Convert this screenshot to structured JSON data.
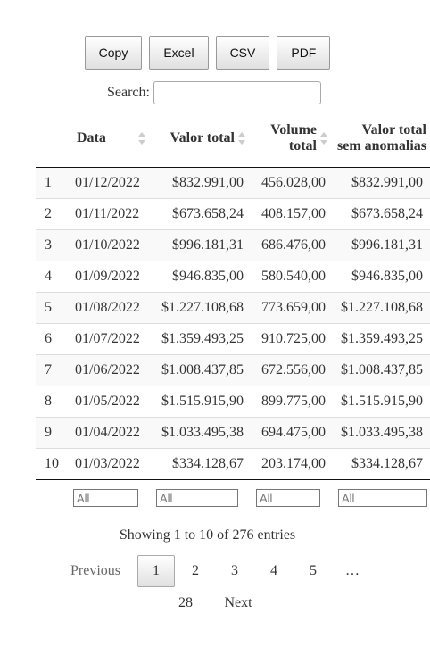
{
  "buttons": {
    "copy": "Copy",
    "excel": "Excel",
    "csv": "CSV",
    "pdf": "PDF"
  },
  "search": {
    "label": "Search:",
    "value": ""
  },
  "table": {
    "headers": {
      "data": "Data",
      "valor_total": "Valor total",
      "volume_total": "Volume total",
      "valor_sem": "Valor total sem anomalias"
    },
    "rows": [
      {
        "idx": "1",
        "data": "01/12/2022",
        "valor_total": "$832.991,00",
        "volume_total": "456.028,00",
        "valor_sem": "$832.991,00"
      },
      {
        "idx": "2",
        "data": "01/11/2022",
        "valor_total": "$673.658,24",
        "volume_total": "408.157,00",
        "valor_sem": "$673.658,24"
      },
      {
        "idx": "3",
        "data": "01/10/2022",
        "valor_total": "$996.181,31",
        "volume_total": "686.476,00",
        "valor_sem": "$996.181,31"
      },
      {
        "idx": "4",
        "data": "01/09/2022",
        "valor_total": "$946.835,00",
        "volume_total": "580.540,00",
        "valor_sem": "$946.835,00"
      },
      {
        "idx": "5",
        "data": "01/08/2022",
        "valor_total": "$1.227.108,68",
        "volume_total": "773.659,00",
        "valor_sem": "$1.227.108,68"
      },
      {
        "idx": "6",
        "data": "01/07/2022",
        "valor_total": "$1.359.493,25",
        "volume_total": "910.725,00",
        "valor_sem": "$1.359.493,25"
      },
      {
        "idx": "7",
        "data": "01/06/2022",
        "valor_total": "$1.008.437,85",
        "volume_total": "672.556,00",
        "valor_sem": "$1.008.437,85"
      },
      {
        "idx": "8",
        "data": "01/05/2022",
        "valor_total": "$1.515.915,90",
        "volume_total": "899.775,00",
        "valor_sem": "$1.515.915,90"
      },
      {
        "idx": "9",
        "data": "01/04/2022",
        "valor_total": "$1.033.495,38",
        "volume_total": "694.475,00",
        "valor_sem": "$1.033.495,38"
      },
      {
        "idx": "10",
        "data": "01/03/2022",
        "valor_total": "$334.128,67",
        "volume_total": "203.174,00",
        "valor_sem": "$334.128,67"
      }
    ],
    "filter_placeholder": "All"
  },
  "info": "Showing 1 to 10 of 276 entries",
  "pagination": {
    "previous": "Previous",
    "pages": [
      "1",
      "2",
      "3",
      "4",
      "5"
    ],
    "ellipsis": "…",
    "last": "28",
    "next": "Next",
    "current": "1"
  }
}
